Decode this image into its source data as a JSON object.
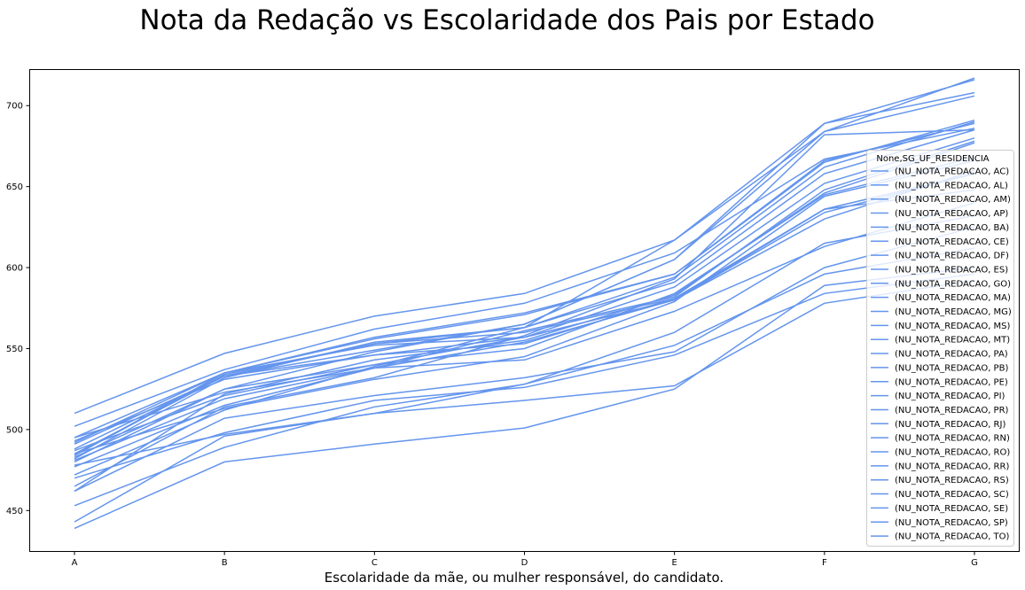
{
  "chart_data": {
    "type": "line",
    "title": "Nota da Redação vs Escolaridade dos Pais por Estado",
    "xlabel": "Escolaridade da mãe, ou mulher responsável, do candidato.",
    "ylabel": "",
    "categories": [
      "A",
      "B",
      "C",
      "D",
      "E",
      "F",
      "G"
    ],
    "ylim": [
      425,
      722
    ],
    "yticks": [
      450,
      500,
      550,
      600,
      650,
      700
    ],
    "grid": false,
    "legend_placement": "right",
    "legend_title": "None,SG_UF_RESIDENCIA",
    "line_color": "#6495ed",
    "series": [
      {
        "name": "(NU_NOTA_REDACAO, AC)",
        "values": [
          484,
          535,
          552,
          557,
          580,
          630,
          660
        ]
      },
      {
        "name": "(NU_NOTA_REDACAO, AL)",
        "values": [
          477,
          515,
          538,
          561,
          582,
          648,
          678
        ]
      },
      {
        "name": "(NU_NOTA_REDACAO, AM)",
        "values": [
          495,
          523,
          538,
          543,
          573,
          613,
          640
        ]
      },
      {
        "name": "(NU_NOTA_REDACAO, AP)",
        "values": [
          462,
          522,
          543,
          555,
          583,
          646,
          677
        ]
      },
      {
        "name": "(NU_NOTA_REDACAO, BA)",
        "values": [
          488,
          533,
          553,
          563,
          591,
          658,
          685
        ]
      },
      {
        "name": "(NU_NOTA_REDACAO, CE)",
        "values": [
          510,
          547,
          570,
          584,
          617,
          684,
          717
        ]
      },
      {
        "name": "(NU_NOTA_REDACAO, DF)",
        "values": [
          502,
          537,
          562,
          578,
          609,
          667,
          686
        ]
      },
      {
        "name": "(NU_NOTA_REDACAO, ES)",
        "values": [
          484,
          534,
          553,
          560,
          581,
          636,
          648
        ]
      },
      {
        "name": "(NU_NOTA_REDACAO, GO)",
        "values": [
          482,
          532,
          554,
          563,
          594,
          662,
          690
        ]
      },
      {
        "name": "(NU_NOTA_REDACAO, MA)",
        "values": [
          470,
          498,
          518,
          526,
          546,
          584,
          596
        ]
      },
      {
        "name": "(NU_NOTA_REDACAO, MG)",
        "values": [
          495,
          535,
          556,
          571,
          596,
          665,
          691
        ]
      },
      {
        "name": "(NU_NOTA_REDACAO, MS)",
        "values": [
          487,
          521,
          540,
          557,
          588,
          652,
          680
        ]
      },
      {
        "name": "(NU_NOTA_REDACAO, MT)",
        "values": [
          481,
          519,
          538,
          554,
          580,
          634,
          658
        ]
      },
      {
        "name": "(NU_NOTA_REDACAO, PA)",
        "values": [
          453,
          489,
          514,
          528,
          552,
          596,
          612
        ]
      },
      {
        "name": "(NU_NOTA_REDACAO, PB)",
        "values": [
          483,
          525,
          548,
          565,
          605,
          684,
          706
        ]
      },
      {
        "name": "(NU_NOTA_REDACAO, PE)",
        "values": [
          485,
          533,
          549,
          565,
          605,
          689,
          716
        ]
      },
      {
        "name": "(NU_NOTA_REDACAO, PI)",
        "values": [
          472,
          512,
          539,
          563,
          617,
          689,
          708
        ]
      },
      {
        "name": "(NU_NOTA_REDACAO, PR)",
        "values": [
          493,
          531,
          546,
          553,
          581,
          636,
          658
        ]
      },
      {
        "name": "(NU_NOTA_REDACAO, RJ)",
        "values": [
          492,
          535,
          557,
          572,
          596,
          666,
          689
        ]
      },
      {
        "name": "(NU_NOTA_REDACAO, RN)",
        "values": [
          478,
          497,
          510,
          528,
          560,
          615,
          632
        ]
      },
      {
        "name": "(NU_NOTA_REDACAO, RO)",
        "values": [
          462,
          507,
          521,
          532,
          548,
          600,
          625
        ]
      },
      {
        "name": "(NU_NOTA_REDACAO, RR)",
        "values": [
          443,
          496,
          510,
          518,
          527,
          578,
          592
        ]
      },
      {
        "name": "(NU_NOTA_REDACAO, RS)",
        "values": [
          480,
          525,
          540,
          550,
          584,
          645,
          668
        ]
      },
      {
        "name": "(NU_NOTA_REDACAO, SC)",
        "values": [
          485,
          513,
          531,
          545,
          579,
          644,
          666
        ]
      },
      {
        "name": "(NU_NOTA_REDACAO, SE)",
        "values": [
          465,
          514,
          532,
          558,
          593,
          682,
          685
        ]
      },
      {
        "name": "(NU_NOTA_REDACAO, SP)",
        "values": [
          491,
          533,
          546,
          557,
          580,
          636,
          658
        ]
      },
      {
        "name": "(NU_NOTA_REDACAO, TO)",
        "values": [
          439,
          480,
          491,
          501,
          525,
          589,
          600
        ]
      }
    ]
  }
}
